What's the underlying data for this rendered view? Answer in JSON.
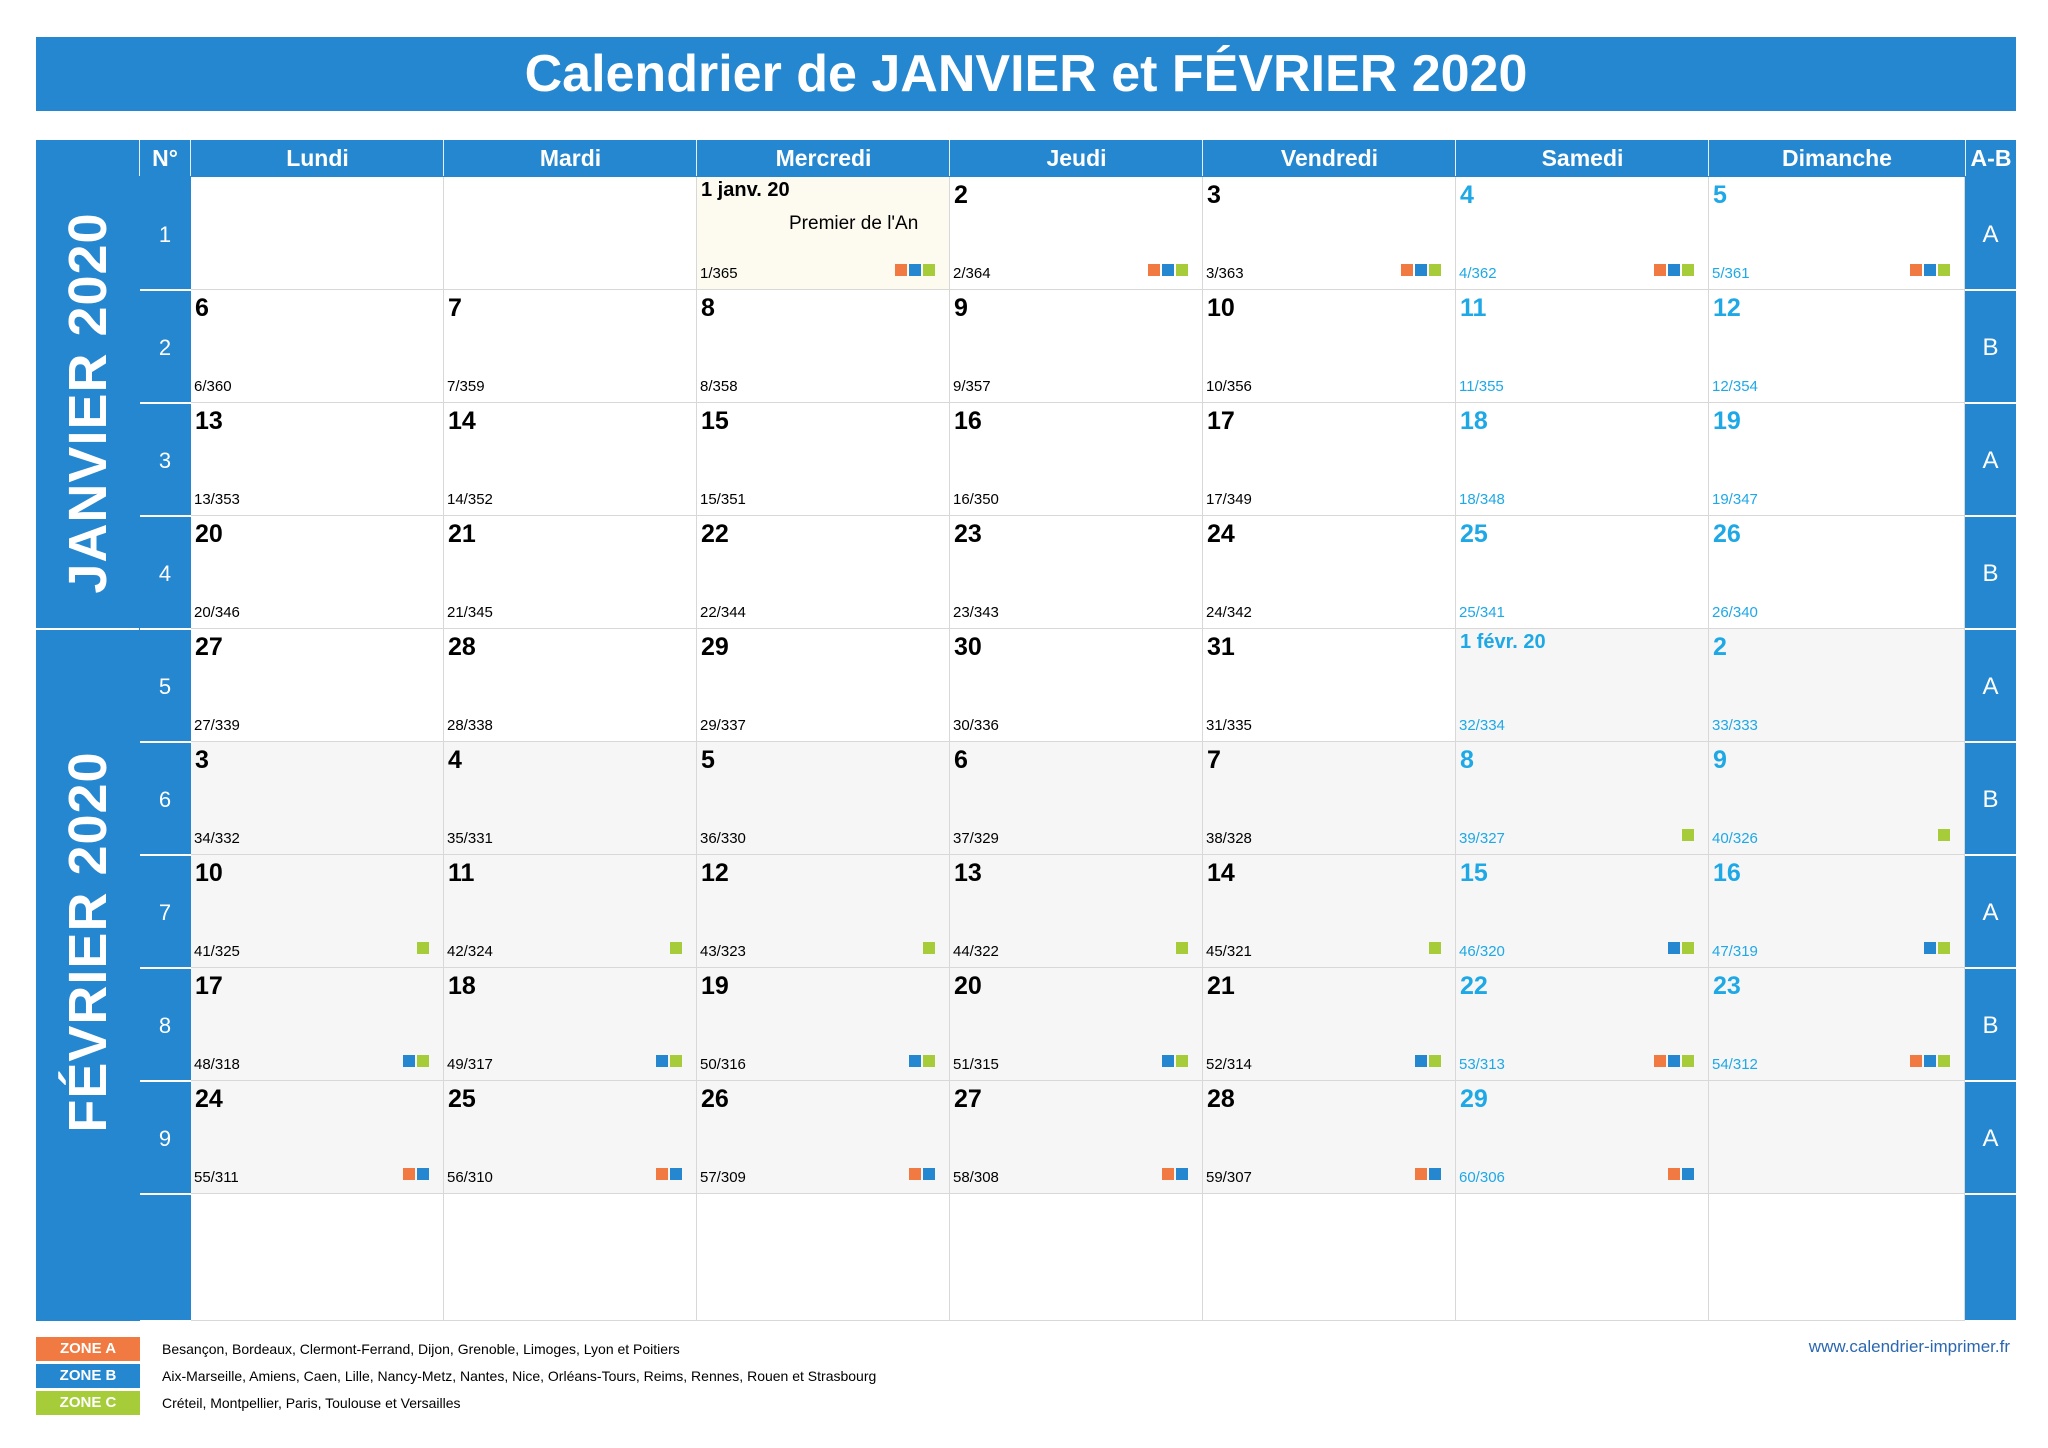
{
  "title": "Calendrier de JANVIER et FÉVRIER 2020",
  "headers": {
    "num": "N°",
    "days": [
      "Lundi",
      "Mardi",
      "Mercredi",
      "Jeudi",
      "Vendredi",
      "Samedi",
      "Dimanche"
    ],
    "ab": "A-B"
  },
  "months": {
    "jan": "JANVIER 2020",
    "feb": "FÉVRIER 2020"
  },
  "colors": {
    "blue": "#2487d0",
    "weekend": "#1ea8e6",
    "zone_a": "#f07a41",
    "zone_b": "#2487d0",
    "zone_c": "#a6cc3a"
  },
  "weeks": [
    {
      "n": "1",
      "ab": "A",
      "days": [
        null,
        null,
        {
          "num": "1 janv. 20",
          "doy": "1/365",
          "m": "jan",
          "holiday": "Premier de l'An",
          "zones": "ABC"
        },
        {
          "num": "2",
          "doy": "2/364",
          "m": "jan",
          "zones": "ABC"
        },
        {
          "num": "3",
          "doy": "3/363",
          "m": "jan",
          "zones": "ABC"
        },
        {
          "num": "4",
          "doy": "4/362",
          "m": "jan",
          "zones": "ABC"
        },
        {
          "num": "5",
          "doy": "5/361",
          "m": "jan",
          "zones": "ABC"
        }
      ]
    },
    {
      "n": "2",
      "ab": "B",
      "days": [
        {
          "num": "6",
          "doy": "6/360",
          "m": "jan"
        },
        {
          "num": "7",
          "doy": "7/359",
          "m": "jan"
        },
        {
          "num": "8",
          "doy": "8/358",
          "m": "jan"
        },
        {
          "num": "9",
          "doy": "9/357",
          "m": "jan"
        },
        {
          "num": "10",
          "doy": "10/356",
          "m": "jan"
        },
        {
          "num": "11",
          "doy": "11/355",
          "m": "jan"
        },
        {
          "num": "12",
          "doy": "12/354",
          "m": "jan"
        }
      ]
    },
    {
      "n": "3",
      "ab": "A",
      "days": [
        {
          "num": "13",
          "doy": "13/353",
          "m": "jan"
        },
        {
          "num": "14",
          "doy": "14/352",
          "m": "jan"
        },
        {
          "num": "15",
          "doy": "15/351",
          "m": "jan"
        },
        {
          "num": "16",
          "doy": "16/350",
          "m": "jan"
        },
        {
          "num": "17",
          "doy": "17/349",
          "m": "jan"
        },
        {
          "num": "18",
          "doy": "18/348",
          "m": "jan"
        },
        {
          "num": "19",
          "doy": "19/347",
          "m": "jan"
        }
      ]
    },
    {
      "n": "4",
      "ab": "B",
      "days": [
        {
          "num": "20",
          "doy": "20/346",
          "m": "jan"
        },
        {
          "num": "21",
          "doy": "21/345",
          "m": "jan"
        },
        {
          "num": "22",
          "doy": "22/344",
          "m": "jan"
        },
        {
          "num": "23",
          "doy": "23/343",
          "m": "jan"
        },
        {
          "num": "24",
          "doy": "24/342",
          "m": "jan"
        },
        {
          "num": "25",
          "doy": "25/341",
          "m": "jan"
        },
        {
          "num": "26",
          "doy": "26/340",
          "m": "jan"
        }
      ]
    },
    {
      "n": "5",
      "ab": "A",
      "days": [
        {
          "num": "27",
          "doy": "27/339",
          "m": "jan"
        },
        {
          "num": "28",
          "doy": "28/338",
          "m": "jan"
        },
        {
          "num": "29",
          "doy": "29/337",
          "m": "jan"
        },
        {
          "num": "30",
          "doy": "30/336",
          "m": "jan"
        },
        {
          "num": "31",
          "doy": "31/335",
          "m": "jan"
        },
        {
          "num": "1 févr. 20",
          "doy": "32/334",
          "m": "feb"
        },
        {
          "num": "2",
          "doy": "33/333",
          "m": "feb"
        }
      ]
    },
    {
      "n": "6",
      "ab": "B",
      "days": [
        {
          "num": "3",
          "doy": "34/332",
          "m": "feb"
        },
        {
          "num": "4",
          "doy": "35/331",
          "m": "feb"
        },
        {
          "num": "5",
          "doy": "36/330",
          "m": "feb"
        },
        {
          "num": "6",
          "doy": "37/329",
          "m": "feb"
        },
        {
          "num": "7",
          "doy": "38/328",
          "m": "feb"
        },
        {
          "num": "8",
          "doy": "39/327",
          "m": "feb",
          "zones": "C"
        },
        {
          "num": "9",
          "doy": "40/326",
          "m": "feb",
          "zones": "C"
        }
      ]
    },
    {
      "n": "7",
      "ab": "A",
      "days": [
        {
          "num": "10",
          "doy": "41/325",
          "m": "feb",
          "zones": "C"
        },
        {
          "num": "11",
          "doy": "42/324",
          "m": "feb",
          "zones": "C"
        },
        {
          "num": "12",
          "doy": "43/323",
          "m": "feb",
          "zones": "C"
        },
        {
          "num": "13",
          "doy": "44/322",
          "m": "feb",
          "zones": "C"
        },
        {
          "num": "14",
          "doy": "45/321",
          "m": "feb",
          "zones": "C"
        },
        {
          "num": "15",
          "doy": "46/320",
          "m": "feb",
          "zones": "BC"
        },
        {
          "num": "16",
          "doy": "47/319",
          "m": "feb",
          "zones": "BC"
        }
      ]
    },
    {
      "n": "8",
      "ab": "B",
      "days": [
        {
          "num": "17",
          "doy": "48/318",
          "m": "feb",
          "zones": "BC"
        },
        {
          "num": "18",
          "doy": "49/317",
          "m": "feb",
          "zones": "BC"
        },
        {
          "num": "19",
          "doy": "50/316",
          "m": "feb",
          "zones": "BC"
        },
        {
          "num": "20",
          "doy": "51/315",
          "m": "feb",
          "zones": "BC"
        },
        {
          "num": "21",
          "doy": "52/314",
          "m": "feb",
          "zones": "BC"
        },
        {
          "num": "22",
          "doy": "53/313",
          "m": "feb",
          "zones": "ABC"
        },
        {
          "num": "23",
          "doy": "54/312",
          "m": "feb",
          "zones": "ABC"
        }
      ]
    },
    {
      "n": "9",
      "ab": "A",
      "days": [
        {
          "num": "24",
          "doy": "55/311",
          "m": "feb",
          "zones": "AB"
        },
        {
          "num": "25",
          "doy": "56/310",
          "m": "feb",
          "zones": "AB"
        },
        {
          "num": "26",
          "doy": "57/309",
          "m": "feb",
          "zones": "AB"
        },
        {
          "num": "27",
          "doy": "58/308",
          "m": "feb",
          "zones": "AB"
        },
        {
          "num": "28",
          "doy": "59/307",
          "m": "feb",
          "zones": "AB"
        },
        {
          "num": "29",
          "doy": "60/306",
          "m": "feb",
          "zones": "AB"
        },
        null
      ]
    },
    {
      "n": "",
      "ab": "",
      "days": [
        null,
        null,
        null,
        null,
        null,
        null,
        null
      ]
    }
  ],
  "zones": [
    {
      "label": "ZONE A",
      "text": "Besançon, Bordeaux, Clermont-Ferrand, Dijon, Grenoble, Limoges, Lyon et Poitiers"
    },
    {
      "label": "ZONE B",
      "text": "Aix-Marseille, Amiens, Caen, Lille, Nancy-Metz, Nantes, Nice, Orléans-Tours, Reims, Rennes, Rouen et Strasbourg"
    },
    {
      "label": "ZONE C",
      "text": "Créteil, Montpellier, Paris, Toulouse et Versailles"
    }
  ],
  "website": "www.calendrier-imprimer.fr"
}
